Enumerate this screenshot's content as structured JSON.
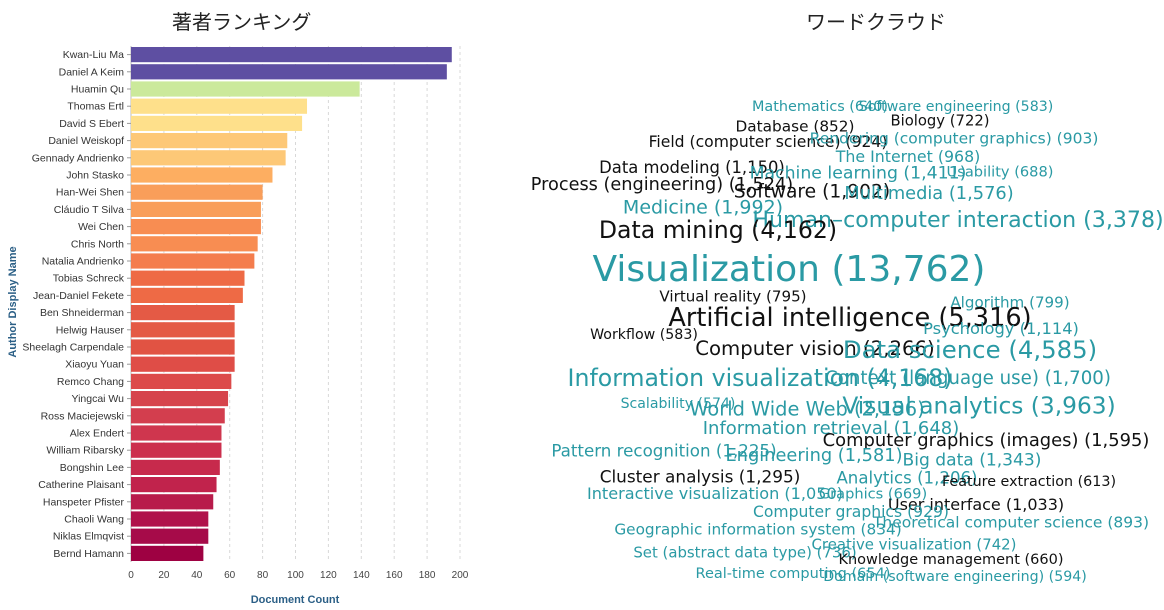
{
  "bar_panel_title": "著者ランキング",
  "cloud_panel_title": "ワードクラウド",
  "chart_data": [
    {
      "type": "bar",
      "orientation": "horizontal",
      "xlabel": "Document Count",
      "ylabel": "Author Display Name",
      "xlim": [
        0,
        200
      ],
      "xticks": [
        0,
        20,
        40,
        60,
        80,
        100,
        120,
        140,
        160,
        180,
        200
      ],
      "grid": true,
      "categories": [
        "Kwan-Liu Ma",
        "Daniel A Keim",
        "Huamin Qu",
        "Thomas Ertl",
        "David S Ebert",
        "Daniel Weiskopf",
        "Gennady Andrienko",
        "John Stasko",
        "Han-Wei Shen",
        "Cláudio T Silva",
        "Wei Chen",
        "Chris North",
        "Natalia Andrienko",
        "Tobias Schreck",
        "Jean-Daniel Fekete",
        "Ben Shneiderman",
        "Helwig Hauser",
        "Sheelagh Carpendale",
        "Xiaoyu Yuan",
        "Remco Chang",
        "Yingcai Wu",
        "Ross Maciejewski",
        "Alex Endert",
        "William Ribarsky",
        "Bongshin Lee",
        "Catherine Plaisant",
        "Hanspeter Pfister",
        "Chaoli Wang",
        "Niklas Elmqvist",
        "Bernd Hamann"
      ],
      "values": [
        195,
        192,
        139,
        107,
        104,
        95,
        94,
        86,
        80,
        79,
        79,
        77,
        75,
        69,
        68,
        63,
        63,
        63,
        63,
        61,
        59,
        57,
        55,
        55,
        54,
        52,
        50,
        47,
        47,
        44
      ],
      "colors": [
        "#5e4fa2",
        "#5e4fa2",
        "#cbe99b",
        "#fee08b",
        "#fee08b",
        "#fdc877",
        "#fdc877",
        "#fdae61",
        "#f99e5a",
        "#f99e5a",
        "#f88d52",
        "#f88d52",
        "#f47d4d",
        "#ee6a45",
        "#ee6a45",
        "#e45a45",
        "#e45a45",
        "#e15343",
        "#df4d47",
        "#dc4a4a",
        "#d6444c",
        "#d33e4e",
        "#cf364e",
        "#cc2f4d",
        "#c72a4c",
        "#c1234c",
        "#b81b4b",
        "#b0124b",
        "#a60b49",
        "#9e0142"
      ]
    },
    {
      "type": "wordcloud",
      "words": [
        {
          "text": "Mathematics (640)",
          "weight": 640,
          "color": "#2a9aa4"
        },
        {
          "text": "Software engineering (583)",
          "weight": 583,
          "color": "#2a9aa4"
        },
        {
          "text": "Database (852)",
          "weight": 852,
          "color": "#111111"
        },
        {
          "text": "Biology (722)",
          "weight": 722,
          "color": "#111111"
        },
        {
          "text": "Field (computer science) (924)",
          "weight": 924,
          "color": "#111111"
        },
        {
          "text": "Rendering (computer graphics) (903)",
          "weight": 903,
          "color": "#2a9aa4"
        },
        {
          "text": "The Internet (968)",
          "weight": 968,
          "color": "#2a9aa4"
        },
        {
          "text": "Data modeling (1,150)",
          "weight": 1150,
          "color": "#111111"
        },
        {
          "text": "Machine learning (1,411)",
          "weight": 1411,
          "color": "#2a9aa4"
        },
        {
          "text": "Usability (688)",
          "weight": 688,
          "color": "#2a9aa4"
        },
        {
          "text": "Process (engineering) (1,524)",
          "weight": 1524,
          "color": "#111111"
        },
        {
          "text": "Software (1,902)",
          "weight": 1902,
          "color": "#111111"
        },
        {
          "text": "Multimedia (1,576)",
          "weight": 1576,
          "color": "#2a9aa4"
        },
        {
          "text": "Medicine (1,992)",
          "weight": 1992,
          "color": "#2a9aa4"
        },
        {
          "text": "Human–computer interaction (3,378)",
          "weight": 3378,
          "color": "#2a9aa4"
        },
        {
          "text": "Data mining (4,162)",
          "weight": 4162,
          "color": "#111111"
        },
        {
          "text": "Visualization (13,762)",
          "weight": 13762,
          "color": "#2a9aa4"
        },
        {
          "text": "Virtual reality (795)",
          "weight": 795,
          "color": "#111111"
        },
        {
          "text": "Algorithm (799)",
          "weight": 799,
          "color": "#2a9aa4"
        },
        {
          "text": "Artificial intelligence (5,316)",
          "weight": 5316,
          "color": "#111111"
        },
        {
          "text": "Psychology (1,114)",
          "weight": 1114,
          "color": "#2a9aa4"
        },
        {
          "text": "Workflow (583)",
          "weight": 583,
          "color": "#111111"
        },
        {
          "text": "Computer vision (2,266)",
          "weight": 2266,
          "color": "#111111"
        },
        {
          "text": "Data science (4,585)",
          "weight": 4585,
          "color": "#2a9aa4"
        },
        {
          "text": "Information visualization (4,168)",
          "weight": 4168,
          "color": "#2a9aa4"
        },
        {
          "text": "Context (language use) (1,700)",
          "weight": 1700,
          "color": "#2a9aa4"
        },
        {
          "text": "Scalability (574)",
          "weight": 574,
          "color": "#2a9aa4"
        },
        {
          "text": "World Wide Web (2,156)",
          "weight": 2156,
          "color": "#2a9aa4"
        },
        {
          "text": "Visual analytics (3,963)",
          "weight": 3963,
          "color": "#2a9aa4"
        },
        {
          "text": "Information retrieval (1,648)",
          "weight": 1648,
          "color": "#2a9aa4"
        },
        {
          "text": "Computer graphics (images) (1,595)",
          "weight": 1595,
          "color": "#111111"
        },
        {
          "text": "Pattern recognition (1,225)",
          "weight": 1225,
          "color": "#2a9aa4"
        },
        {
          "text": "Engineering (1,581)",
          "weight": 1581,
          "color": "#2a9aa4"
        },
        {
          "text": "Big data (1,343)",
          "weight": 1343,
          "color": "#2a9aa4"
        },
        {
          "text": "Cluster analysis (1,295)",
          "weight": 1295,
          "color": "#111111"
        },
        {
          "text": "Analytics (1,206)",
          "weight": 1206,
          "color": "#2a9aa4"
        },
        {
          "text": "Feature extraction (613)",
          "weight": 613,
          "color": "#111111"
        },
        {
          "text": "Interactive visualization (1,050)",
          "weight": 1050,
          "color": "#2a9aa4"
        },
        {
          "text": "Graphics (669)",
          "weight": 669,
          "color": "#2a9aa4"
        },
        {
          "text": "User interface (1,033)",
          "weight": 1033,
          "color": "#111111"
        },
        {
          "text": "Computer graphics (929)",
          "weight": 929,
          "color": "#2a9aa4"
        },
        {
          "text": "Theoretical computer science (893)",
          "weight": 893,
          "color": "#2a9aa4"
        },
        {
          "text": "Geographic information system (834)",
          "weight": 834,
          "color": "#2a9aa4"
        },
        {
          "text": "Creative visualization (742)",
          "weight": 742,
          "color": "#2a9aa4"
        },
        {
          "text": "Set (abstract data type) (736)",
          "weight": 736,
          "color": "#2a9aa4"
        },
        {
          "text": "Knowledge management (660)",
          "weight": 660,
          "color": "#111111"
        },
        {
          "text": "Real-time computing (654)",
          "weight": 654,
          "color": "#2a9aa4"
        },
        {
          "text": "Domain (software engineering) (594)",
          "weight": 594,
          "color": "#2a9aa4"
        }
      ]
    }
  ]
}
